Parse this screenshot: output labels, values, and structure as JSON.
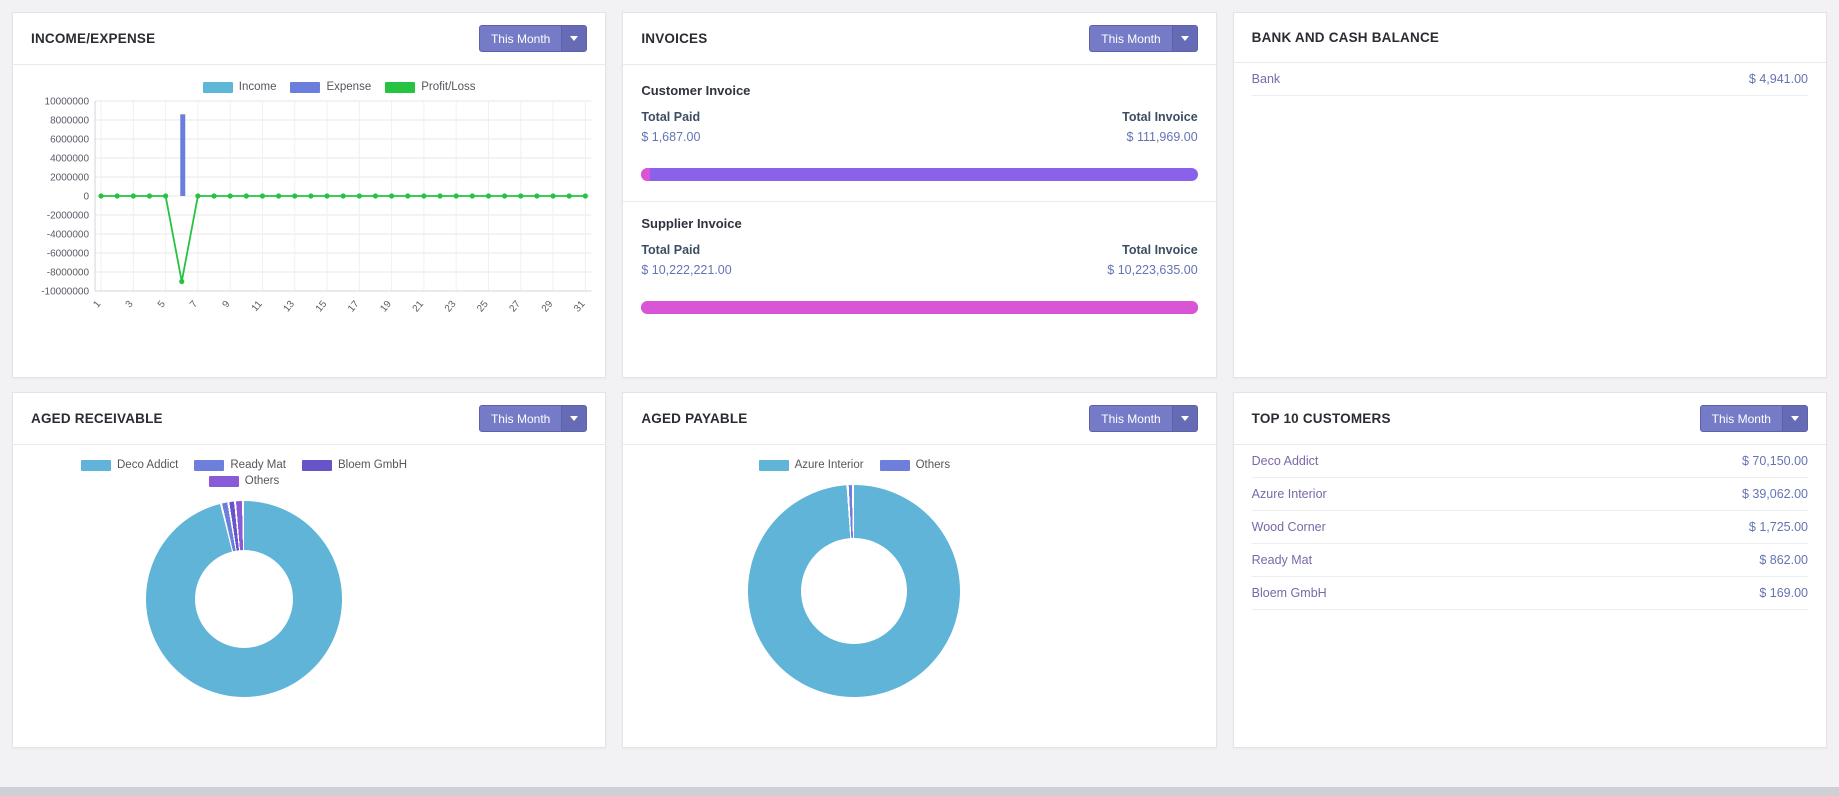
{
  "panels": {
    "income_expense": {
      "title": "INCOME/EXPENSE",
      "filter": "This Month",
      "chart_data": {
        "type": "bar+line",
        "x": [
          "1",
          "2",
          "3",
          "4",
          "5",
          "6",
          "7",
          "8",
          "9",
          "10",
          "11",
          "12",
          "13",
          "14",
          "15",
          "16",
          "17",
          "18",
          "19",
          "20",
          "21",
          "22",
          "23",
          "24",
          "25",
          "26",
          "27",
          "28",
          "29",
          "30",
          "31"
        ],
        "xtick_step": 2,
        "ylim": [
          -10000000,
          10000000
        ],
        "yticks": [
          10000000,
          8000000,
          6000000,
          4000000,
          2000000,
          0,
          -2000000,
          -4000000,
          -6000000,
          -8000000,
          -10000000
        ],
        "grid": true,
        "legend_position": "top",
        "series": [
          {
            "name": "Income",
            "type": "bar",
            "color": "#5fb7d8",
            "offset": -4,
            "values": [
              0,
              0,
              0,
              0,
              0,
              0,
              0,
              0,
              0,
              0,
              0,
              0,
              0,
              0,
              0,
              0,
              0,
              0,
              0,
              0,
              0,
              0,
              0,
              0,
              0,
              0,
              0,
              0,
              0,
              0,
              0
            ]
          },
          {
            "name": "Expense",
            "type": "bar",
            "color": "#6b7ede",
            "offset": 1,
            "values": [
              0,
              0,
              0,
              0,
              0,
              8600000,
              0,
              0,
              0,
              0,
              0,
              0,
              0,
              0,
              0,
              0,
              0,
              0,
              0,
              0,
              0,
              0,
              0,
              0,
              0,
              0,
              0,
              0,
              0,
              0,
              0
            ]
          },
          {
            "name": "Profit/Loss",
            "type": "line",
            "color": "#26c342",
            "values": [
              0,
              0,
              0,
              0,
              0,
              -9000000,
              0,
              0,
              0,
              0,
              0,
              0,
              0,
              0,
              0,
              0,
              0,
              0,
              0,
              0,
              0,
              0,
              0,
              0,
              0,
              0,
              0,
              0,
              0,
              0,
              0
            ]
          }
        ]
      }
    },
    "invoices": {
      "title": "INVOICES",
      "filter": "This Month",
      "customer": {
        "heading": "Customer Invoice",
        "paid_label": "Total Paid",
        "invoice_label": "Total Invoice",
        "paid": "$ 1,687.00",
        "invoice": "$ 111,969.00",
        "paid_pct": 1.6
      },
      "supplier": {
        "heading": "Supplier Invoice",
        "paid_label": "Total Paid",
        "invoice_label": "Total Invoice",
        "paid": "$ 10,222,221.00",
        "invoice": "$ 10,223,635.00",
        "paid_pct": 99.99
      },
      "bar_colors": {
        "paid": "#da55d6",
        "remaining": "#8a62e9"
      }
    },
    "bank": {
      "title": "BANK AND CASH BALANCE",
      "rows": [
        {
          "name": "Bank",
          "amount": "$ 4,941.00"
        }
      ]
    },
    "aged_receivable": {
      "title": "AGED RECEIVABLE",
      "filter": "This Month",
      "chart_data": {
        "type": "pie",
        "unit": "percent_estimated",
        "legend_position": "top",
        "slices": [
          {
            "label": "Deco Addict",
            "value": 96.4,
            "color": "#5fb4d8"
          },
          {
            "label": "Ready Mat",
            "value": 1.2,
            "color": "#6d7fdb"
          },
          {
            "label": "Bloem GmbH",
            "value": 1.1,
            "color": "#6654c8"
          },
          {
            "label": "Others",
            "value": 1.3,
            "color": "#8a5bd6"
          }
        ]
      }
    },
    "aged_payable": {
      "title": "AGED PAYABLE",
      "filter": "This Month",
      "chart_data": {
        "type": "pie",
        "unit": "percent_estimated",
        "legend_position": "top",
        "slices": [
          {
            "label": "Azure Interior",
            "value": 99.2,
            "color": "#5fb4d8"
          },
          {
            "label": "Others",
            "value": 0.8,
            "color": "#6d7fdb"
          }
        ]
      }
    },
    "top_customers": {
      "title": "TOP 10 CUSTOMERS",
      "filter": "This Month",
      "rows": [
        {
          "name": "Deco Addict",
          "amount": "$ 70,150.00"
        },
        {
          "name": "Azure Interior",
          "amount": "$ 39,062.00"
        },
        {
          "name": "Wood Corner",
          "amount": "$ 1,725.00"
        },
        {
          "name": "Ready Mat",
          "amount": "$ 862.00"
        },
        {
          "name": "Bloem GmbH",
          "amount": "$ 169.00"
        }
      ]
    }
  }
}
